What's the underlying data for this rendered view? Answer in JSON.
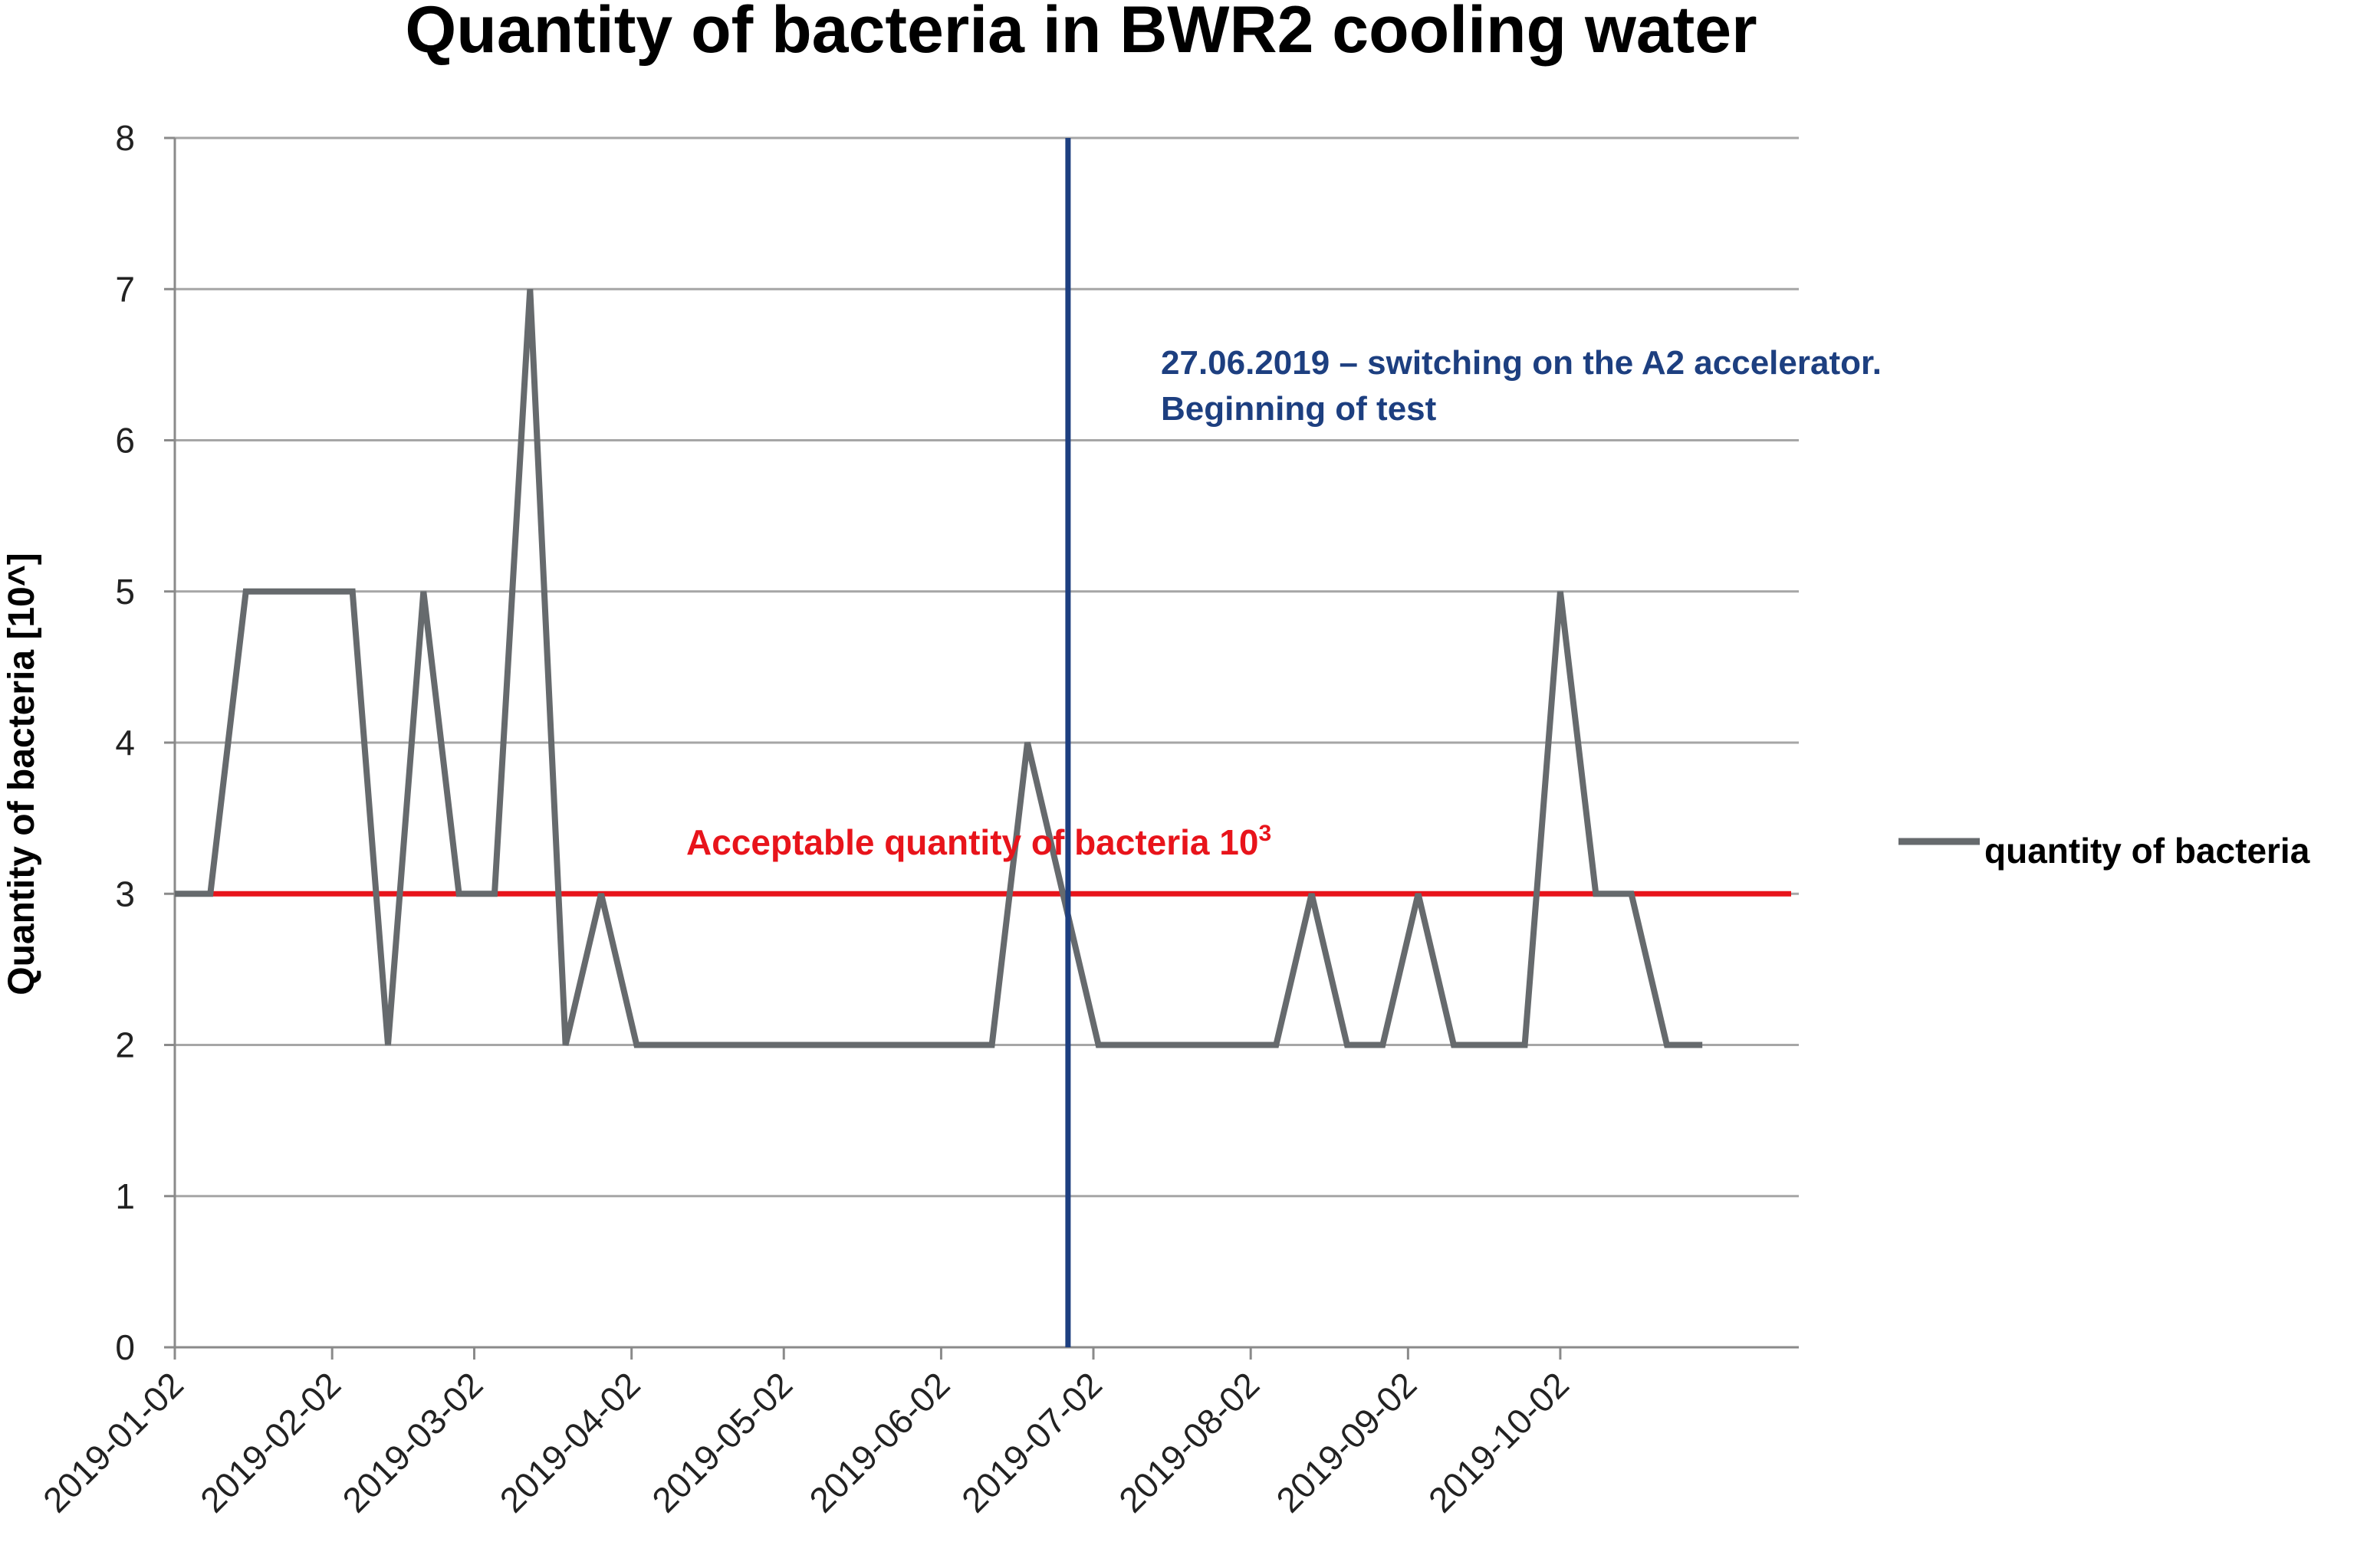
{
  "chart_data": {
    "type": "line",
    "title": "Quantity of bacteria in BWR2 cooling water",
    "ylabel": "Quantity of bacteria [10^]",
    "ylim": [
      0,
      8
    ],
    "yticks": [
      "0",
      "1",
      "2",
      "3",
      "4",
      "5",
      "6",
      "7",
      "8"
    ],
    "xlim": [
      "2019-01-02",
      "2019-11-18"
    ],
    "xtick_dates": [
      "2019-01-02",
      "2019-02-02",
      "2019-03-02",
      "2019-04-02",
      "2019-05-02",
      "2019-06-02",
      "2019-07-02",
      "2019-08-02",
      "2019-09-02",
      "2019-10-02"
    ],
    "grid": true,
    "legend_position": "right",
    "series": [
      {
        "name": "quantity of bacteria",
        "color": "#666a6d",
        "x": [
          "2019-01-02",
          "2019-01-09",
          "2019-01-16",
          "2019-01-23",
          "2019-01-30",
          "2019-02-06",
          "2019-02-13",
          "2019-02-20",
          "2019-02-27",
          "2019-03-06",
          "2019-03-13",
          "2019-03-20",
          "2019-03-27",
          "2019-04-03",
          "2019-04-10",
          "2019-04-17",
          "2019-04-24",
          "2019-05-01",
          "2019-05-08",
          "2019-05-15",
          "2019-05-22",
          "2019-05-29",
          "2019-06-05",
          "2019-06-12",
          "2019-06-19",
          "2019-06-26",
          "2019-07-03",
          "2019-07-10",
          "2019-07-17",
          "2019-07-24",
          "2019-07-31",
          "2019-08-07",
          "2019-08-14",
          "2019-08-21",
          "2019-08-28",
          "2019-09-04",
          "2019-09-11",
          "2019-09-18",
          "2019-09-25",
          "2019-10-02",
          "2019-10-09",
          "2019-10-16",
          "2019-10-23",
          "2019-10-30"
        ],
        "values": [
          3,
          3,
          5,
          5,
          5,
          5,
          2,
          5,
          3,
          3,
          7,
          2,
          3,
          2,
          2,
          2,
          2,
          2,
          2,
          2,
          2,
          2,
          2,
          2,
          4,
          3,
          2,
          2,
          2,
          2,
          2,
          2,
          3,
          2,
          2,
          3,
          2,
          2,
          2,
          5,
          3,
          3,
          2,
          2
        ]
      }
    ],
    "reference_line": {
      "label": "Acceptable quantity of bacteria 10",
      "superscript": "3",
      "y": 3,
      "color": "#e8141b"
    },
    "event_line": {
      "date": "2019-06-27",
      "label_line1": "27.06.2019 – switching on the A2 accelerator.",
      "label_line2": "Beginning of test",
      "color": "#1d3f80"
    }
  }
}
